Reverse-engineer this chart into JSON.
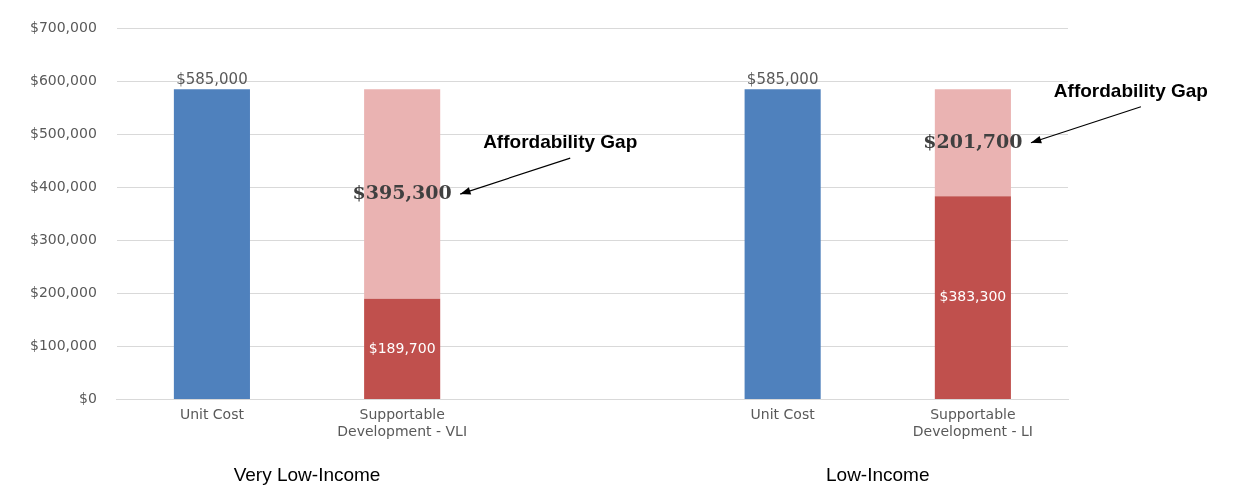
{
  "chart_data": {
    "type": "bar",
    "stacked": true,
    "categories": [
      "Unit Cost",
      "Supportable Development - VLI",
      null,
      "Unit Cost",
      "Supportable Development - LI"
    ],
    "series": [
      {
        "color": "#4f81bd",
        "values": [
          585000,
          null,
          null,
          585000,
          null
        ],
        "value_labels": [
          "$585,000",
          null,
          null,
          "$585,000",
          null
        ]
      },
      {
        "color": "#c0504d",
        "values": [
          null,
          189700,
          null,
          null,
          383300
        ],
        "value_labels": [
          null,
          "$189,700",
          null,
          null,
          "$383,300"
        ]
      },
      {
        "color": "#eab3b2",
        "values": [
          null,
          395300,
          null,
          null,
          201700
        ],
        "value_labels": [
          null,
          "$395,300",
          null,
          null,
          "$201,700"
        ]
      }
    ],
    "ylim": [
      0,
      700000
    ],
    "yticks": [
      {
        "value": 0,
        "label": "$0"
      },
      {
        "value": 100000,
        "label": "$100,000"
      },
      {
        "value": 200000,
        "label": "$200,000"
      },
      {
        "value": 300000,
        "label": "$300,000"
      },
      {
        "value": 400000,
        "label": "$400,000"
      },
      {
        "value": 500000,
        "label": "$500,000"
      },
      {
        "value": 600000,
        "label": "$600,000"
      },
      {
        "value": 700000,
        "label": "$700,000"
      }
    ],
    "grid": "y",
    "legend": false,
    "annotations": [
      "Affordability Gap",
      "Affordability Gap",
      "Very Low-Income",
      "Low-Income"
    ]
  }
}
